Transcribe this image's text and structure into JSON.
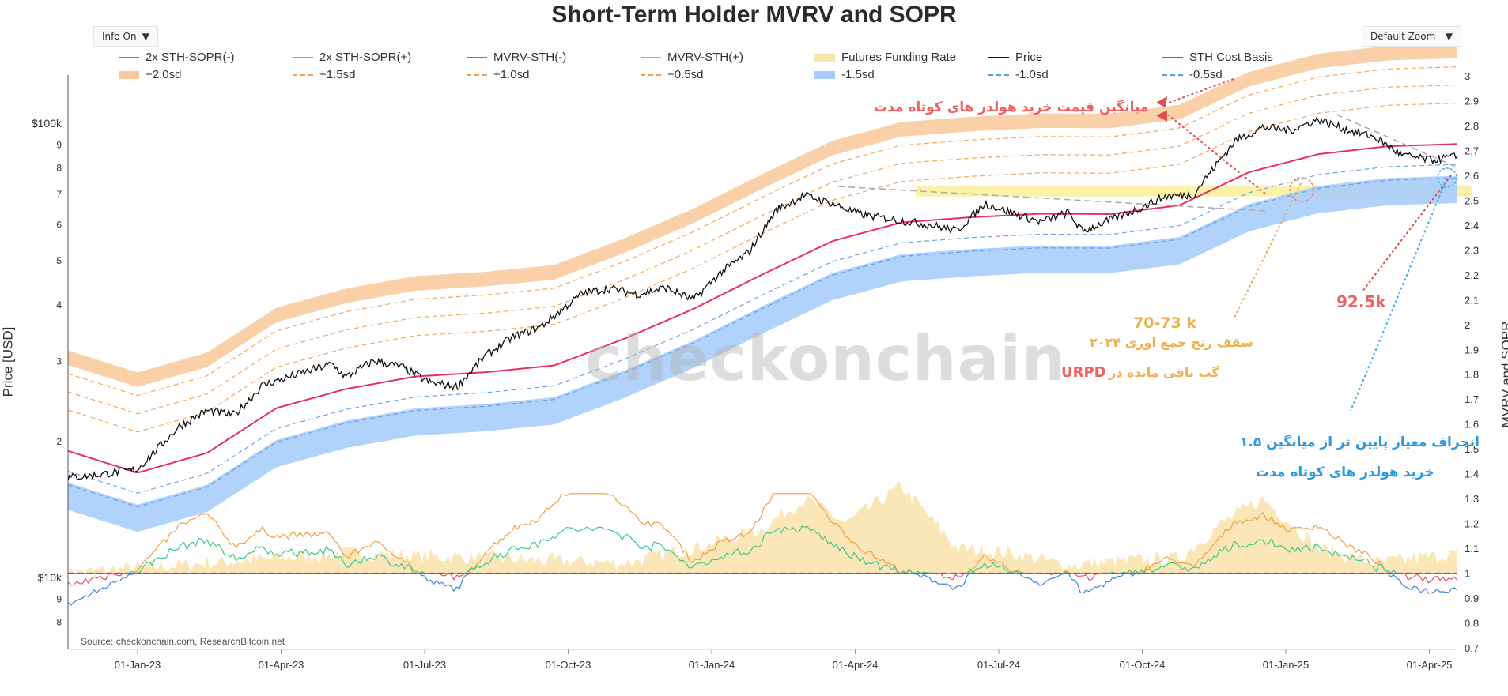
{
  "chart_data": {
    "type": "line",
    "title": "Short-Term Holder MVRV and SOPR",
    "ylabel_left": "Price [USD]",
    "ylabel_right": "MVRV and SOPR",
    "source": "Source: checkonchain.com, ResearchBitcoin.net",
    "watermark": "checkonchain",
    "controls": {
      "info": "Info On",
      "zoom": "Default Zoom"
    },
    "x_ticks": [
      "01-Jan-23",
      "01-Apr-23",
      "01-Jul-23",
      "01-Oct-23",
      "01-Jan-24",
      "01-Apr-24",
      "01-Jul-24",
      "01-Oct-24",
      "01-Jan-25",
      "01-Apr-25"
    ],
    "y_left": {
      "scale": "log",
      "ticks": [
        "$10k",
        "9",
        "8",
        "2",
        "3",
        "4",
        "5",
        "6",
        "7",
        "8",
        "9",
        "$100k"
      ]
    },
    "y_right": {
      "min": 0.7,
      "max": 3.0,
      "ticks": [
        "0.7",
        "0.8",
        "0.9",
        "1",
        "1.1",
        "1.2",
        "1.3",
        "1.4",
        "1.5",
        "1.6",
        "1.7",
        "1.8",
        "1.9",
        "2",
        "2.1",
        "2.2",
        "2.3",
        "2.4",
        "2.5",
        "2.6",
        "2.7",
        "2.8",
        "2.9",
        "3"
      ]
    },
    "legend": [
      {
        "label": "2x STH-SOPR(-)",
        "color": "#e8506e",
        "style": "line"
      },
      {
        "label": "2x STH-SOPR(+)",
        "color": "#3ec98a",
        "style": "line"
      },
      {
        "label": "MVRV-STH(-)",
        "color": "#3a86e0",
        "style": "line"
      },
      {
        "label": "MVRV-STH(+)",
        "color": "#f0a040",
        "style": "line"
      },
      {
        "label": "Futures Funding Rate",
        "color": "#fbe3b0",
        "style": "area"
      },
      {
        "label": "Price",
        "color": "#111111",
        "style": "line"
      },
      {
        "label": "STH Cost Basis",
        "color": "#e8305a",
        "style": "line"
      },
      {
        "label": "+2.0sd",
        "color": "#f9c89a",
        "style": "band"
      },
      {
        "label": "+1.5sd",
        "color": "#f0a050",
        "style": "dash"
      },
      {
        "label": "+1.0sd",
        "color": "#f0a050",
        "style": "dash"
      },
      {
        "label": "+0.5sd",
        "color": "#f0a050",
        "style": "dash"
      },
      {
        "label": "-1.5sd",
        "color": "#a9cdfa",
        "style": "band"
      },
      {
        "label": "-1.0sd",
        "color": "#5a9ae8",
        "style": "dash"
      },
      {
        "label": "-0.5sd",
        "color": "#5a9ae8",
        "style": "dash"
      }
    ],
    "series": [
      {
        "name": "Price",
        "x": [
          0,
          0.02,
          0.05,
          0.08,
          0.1,
          0.12,
          0.14,
          0.17,
          0.19,
          0.2,
          0.22,
          0.24,
          0.26,
          0.28,
          0.3,
          0.32,
          0.34,
          0.35,
          0.37,
          0.39,
          0.41,
          0.43,
          0.45,
          0.47,
          0.49,
          0.51,
          0.53,
          0.55,
          0.57,
          0.6,
          0.62,
          0.64,
          0.66,
          0.68,
          0.7,
          0.72,
          0.73,
          0.75,
          0.77,
          0.79,
          0.81,
          0.82,
          0.84,
          0.86,
          0.88,
          0.9,
          0.92,
          0.94,
          0.96,
          0.98,
          1.0
        ],
        "values": [
          16600,
          16800,
          17300,
          21500,
          23300,
          22800,
          26500,
          28300,
          29500,
          27600,
          30000,
          29100,
          26900,
          26300,
          30700,
          33800,
          35600,
          37700,
          42200,
          43300,
          42000,
          43500,
          40800,
          47000,
          52000,
          64500,
          69400,
          66600,
          63000,
          61000,
          59800,
          58000,
          66500,
          63500,
          60600,
          63600,
          57800,
          61200,
          64700,
          69100,
          69600,
          76600,
          91400,
          98000,
          96500,
          102000,
          96800,
          93400,
          85100,
          83000,
          84500
        ]
      },
      {
        "name": "STH Cost Basis",
        "x": [
          0,
          0.05,
          0.1,
          0.15,
          0.2,
          0.25,
          0.3,
          0.35,
          0.4,
          0.45,
          0.5,
          0.55,
          0.6,
          0.65,
          0.7,
          0.75,
          0.8,
          0.85,
          0.9,
          0.95,
          1.0
        ],
        "values": [
          19000,
          17000,
          18800,
          23600,
          26000,
          27700,
          28300,
          29300,
          33500,
          39000,
          46500,
          55000,
          60500,
          62100,
          63200,
          63100,
          66000,
          78000,
          85500,
          89000,
          90000
        ]
      },
      {
        "name": "Futures Funding Rate",
        "x": [
          0,
          0.1,
          0.2,
          0.3,
          0.4,
          0.45,
          0.5,
          0.53,
          0.56,
          0.6,
          0.64,
          0.68,
          0.72,
          0.76,
          0.8,
          0.83,
          0.86,
          0.9,
          0.94,
          1.0
        ],
        "values": [
          1.0,
          1.04,
          1.08,
          1.06,
          1.04,
          1.1,
          1.18,
          1.3,
          1.2,
          1.35,
          1.1,
          1.08,
          1.03,
          1.05,
          1.06,
          1.2,
          1.3,
          1.1,
          1.04,
          1.08
        ]
      }
    ],
    "annotations": [
      {
        "text": "میانگین قیمت خرید هولدر های کوتاه مدت",
        "color": "#f06060"
      },
      {
        "text": "92.5k",
        "color": "#f06060"
      },
      {
        "text": "70-73 k",
        "color": "#f0b050"
      },
      {
        "text": "سقف رنج جمع اوری ۲۰۲۴",
        "color": "#f0b050"
      },
      {
        "text": "گپ باقی مانده در",
        "color": "#f0b050"
      },
      {
        "text": "URPD",
        "color": "#f06060"
      },
      {
        "text": "۱.۵ انحراف معیار پایین تر از میانگین",
        "color": "#2d9ae0"
      },
      {
        "text": "خرید هولدر های کوتاه مدت",
        "color": "#2d9ae0"
      }
    ]
  }
}
